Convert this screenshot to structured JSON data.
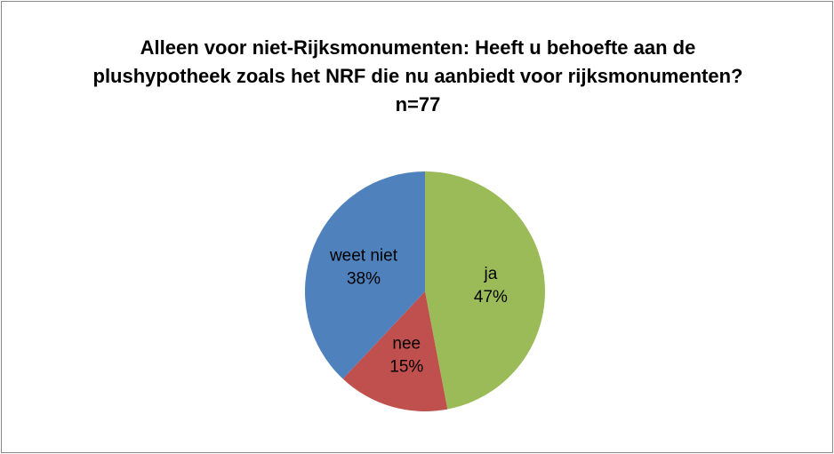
{
  "chart_data": {
    "type": "pie",
    "title": "Alleen voor niet-Rijksmonumenten: Heeft u behoefte aan de plushypotheek zoals het NRF die nu aanbiedt voor rijksmonumenten? n=77",
    "categories": [
      "ja",
      "nee",
      "weet niet"
    ],
    "values": [
      47,
      15,
      38
    ],
    "value_labels": [
      "47%",
      "15%",
      "38%"
    ],
    "colors": [
      "#9bbb59",
      "#c0504d",
      "#4f81bd"
    ]
  }
}
